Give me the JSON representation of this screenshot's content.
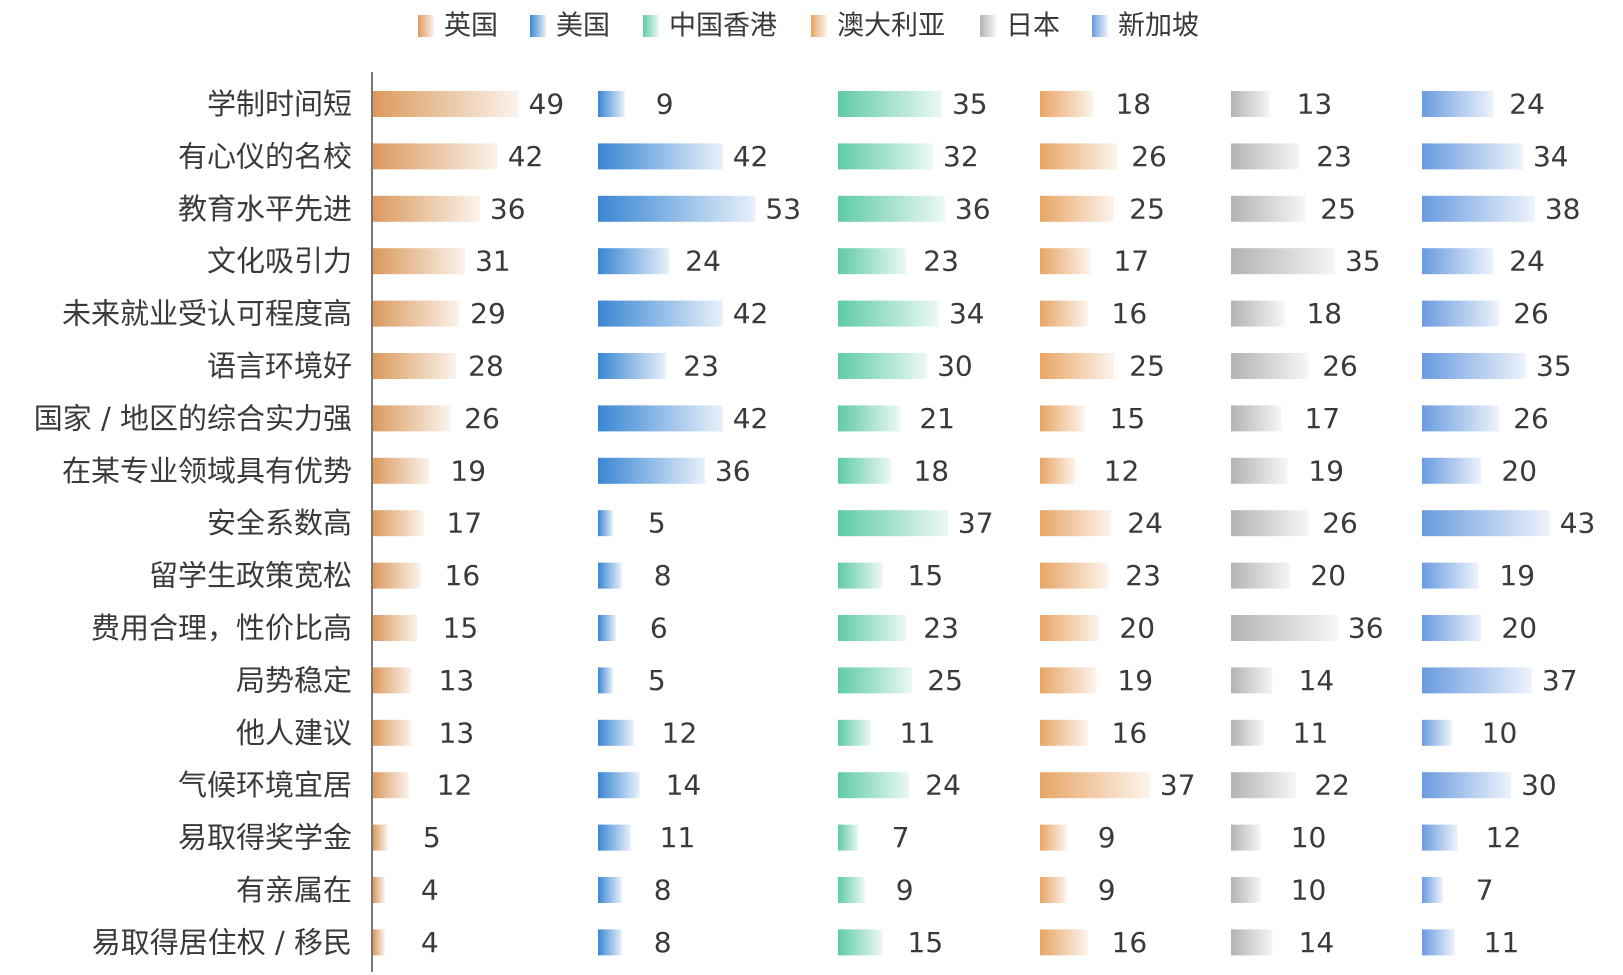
{
  "chart_data": {
    "type": "bar",
    "orientation": "horizontal",
    "layout": "small-multiples",
    "legend_position": "top",
    "categories": [
      "学制时间短",
      "有心仪的名校",
      "教育水平先进",
      "文化吸引力",
      "未来就业受认可程度高",
      "语言环境好",
      "国家 / 地区的综合实力强",
      "在某专业领域具有优势",
      "安全系数高",
      "留学生政策宽松",
      "费用合理，性价比高",
      "局势稳定",
      "他人建议",
      "气候环境宜居",
      "易取得奖学金",
      "有亲属在",
      "易取得居住权 / 移民"
    ],
    "series": [
      {
        "name": "英国",
        "color": "#DB9A5E",
        "values": [
          49,
          42,
          36,
          31,
          29,
          28,
          26,
          19,
          17,
          16,
          15,
          13,
          13,
          12,
          5,
          4,
          4
        ]
      },
      {
        "name": "美国",
        "color": "#3A86D4",
        "values": [
          9,
          42,
          53,
          24,
          42,
          23,
          42,
          36,
          5,
          8,
          6,
          5,
          12,
          14,
          11,
          8,
          8
        ]
      },
      {
        "name": "中国香港",
        "color": "#5FCBA6",
        "values": [
          35,
          32,
          36,
          23,
          34,
          30,
          21,
          18,
          37,
          15,
          23,
          25,
          11,
          24,
          7,
          9,
          15
        ]
      },
      {
        "name": "澳大利亚",
        "color": "#E8A565",
        "values": [
          18,
          26,
          25,
          17,
          16,
          25,
          15,
          12,
          24,
          23,
          20,
          19,
          16,
          37,
          9,
          9,
          16
        ]
      },
      {
        "name": "日本",
        "color": "#B3B3B3",
        "values": [
          13,
          23,
          25,
          35,
          18,
          26,
          17,
          19,
          26,
          20,
          36,
          14,
          11,
          22,
          10,
          10,
          14
        ]
      },
      {
        "name": "新加坡",
        "color": "#6A9BE0",
        "values": [
          24,
          34,
          38,
          24,
          26,
          35,
          26,
          20,
          43,
          19,
          20,
          37,
          10,
          30,
          12,
          7,
          11
        ]
      }
    ]
  }
}
